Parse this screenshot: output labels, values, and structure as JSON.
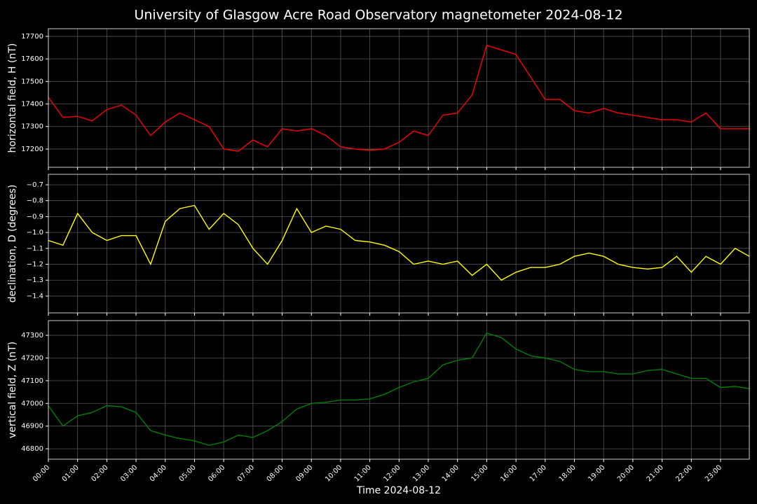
{
  "title": "University of Glasgow Acre Road Observatory magnetometer 2024-08-12",
  "chart_data": [
    {
      "type": "line",
      "y_label": "horizontal field, H (nT)",
      "color": "#ff0000",
      "grid": true,
      "x": [
        "00:00",
        "00:30",
        "01:00",
        "01:30",
        "02:00",
        "02:30",
        "03:00",
        "03:30",
        "04:00",
        "04:30",
        "05:00",
        "05:30",
        "06:00",
        "06:30",
        "07:00",
        "07:30",
        "08:00",
        "08:30",
        "09:00",
        "09:30",
        "10:00",
        "10:30",
        "11:00",
        "11:30",
        "12:00",
        "12:30",
        "13:00",
        "13:30",
        "14:00",
        "14:30",
        "15:00",
        "15:30",
        "16:00",
        "16:30",
        "17:00",
        "17:30",
        "18:00",
        "18:30",
        "19:00",
        "19:30",
        "20:00",
        "20:30",
        "21:00",
        "21:30",
        "22:00",
        "22:30",
        "23:00",
        "23:30",
        "23:59"
      ],
      "values": [
        17430,
        17340,
        17345,
        17325,
        17375,
        17395,
        17350,
        17260,
        17320,
        17360,
        17330,
        17300,
        17200,
        17190,
        17240,
        17210,
        17290,
        17280,
        17290,
        17260,
        17210,
        17200,
        17195,
        17200,
        17230,
        17280,
        17260,
        17350,
        17360,
        17440,
        17660,
        17640,
        17620,
        17520,
        17420,
        17420,
        17370,
        17360,
        17380,
        17360,
        17350,
        17340,
        17330,
        17330,
        17320,
        17360,
        17290,
        17290,
        17290
      ],
      "xlim": [
        "00:00",
        "23:59"
      ],
      "xticks": [
        "00:00",
        "01:00",
        "02:00",
        "03:00",
        "04:00",
        "05:00",
        "06:00",
        "07:00",
        "08:00",
        "09:00",
        "10:00",
        "11:00",
        "12:00",
        "13:00",
        "14:00",
        "15:00",
        "16:00",
        "17:00",
        "18:00",
        "19:00",
        "20:00",
        "21:00",
        "22:00",
        "23:00"
      ],
      "ylim": [
        17119,
        17734
      ],
      "yticks": [
        17200,
        17300,
        17400,
        17500,
        17600,
        17700
      ]
    },
    {
      "type": "line",
      "y_label": "declination, D (degrees)",
      "color": "#ffff00",
      "grid": true,
      "x": [
        "00:00",
        "00:30",
        "01:00",
        "01:30",
        "02:00",
        "02:30",
        "03:00",
        "03:30",
        "04:00",
        "04:30",
        "05:00",
        "05:30",
        "06:00",
        "06:30",
        "07:00",
        "07:30",
        "08:00",
        "08:30",
        "09:00",
        "09:30",
        "10:00",
        "10:30",
        "11:00",
        "11:30",
        "12:00",
        "12:30",
        "13:00",
        "13:30",
        "14:00",
        "14:30",
        "15:00",
        "15:30",
        "16:00",
        "16:30",
        "17:00",
        "17:30",
        "18:00",
        "18:30",
        "19:00",
        "19:30",
        "20:00",
        "20:30",
        "21:00",
        "21:30",
        "22:00",
        "22:30",
        "23:00",
        "23:30",
        "23:59"
      ],
      "values": [
        -1.05,
        -1.08,
        -0.88,
        -1.0,
        -1.05,
        -1.02,
        -1.02,
        -1.2,
        -0.93,
        -0.85,
        -0.83,
        -0.98,
        -0.88,
        -0.95,
        -1.1,
        -1.2,
        -1.05,
        -0.85,
        -1.0,
        -0.96,
        -0.98,
        -1.05,
        -1.06,
        -1.08,
        -1.12,
        -1.2,
        -1.18,
        -1.2,
        -1.18,
        -1.27,
        -1.2,
        -1.3,
        -1.25,
        -1.22,
        -1.22,
        -1.2,
        -1.15,
        -1.13,
        -1.15,
        -1.2,
        -1.22,
        -1.23,
        -1.22,
        -1.15,
        -1.25,
        -1.15,
        -1.2,
        -1.1,
        -1.15
      ],
      "xlim": [
        "00:00",
        "23:59"
      ],
      "xticks": [
        "00:00",
        "01:00",
        "02:00",
        "03:00",
        "04:00",
        "05:00",
        "06:00",
        "07:00",
        "08:00",
        "09:00",
        "10:00",
        "11:00",
        "12:00",
        "13:00",
        "14:00",
        "15:00",
        "16:00",
        "17:00",
        "18:00",
        "19:00",
        "20:00",
        "21:00",
        "22:00",
        "23:00"
      ],
      "ylim": [
        -1.506,
        -0.634
      ],
      "yticks": [
        {
          "value": -1.4,
          "label": "−1.4"
        },
        {
          "value": -1.3,
          "label": "−1.3"
        },
        {
          "value": -1.2,
          "label": "−1.2"
        },
        {
          "value": -1.1,
          "label": "−1.1"
        },
        {
          "value": -1.0,
          "label": "−1.0"
        },
        {
          "value": -0.9,
          "label": "−0.9"
        },
        {
          "value": -0.8,
          "label": "−0.8"
        },
        {
          "value": -0.7,
          "label": "−0.7"
        }
      ]
    },
    {
      "type": "line",
      "y_label": "vertical field, Z (nT)",
      "x_label": "Time 2024-08-12",
      "color": "#008000",
      "grid": true,
      "x": [
        "00:00",
        "00:30",
        "01:00",
        "01:30",
        "02:00",
        "02:30",
        "03:00",
        "03:30",
        "04:00",
        "04:30",
        "05:00",
        "05:30",
        "06:00",
        "06:30",
        "07:00",
        "07:30",
        "08:00",
        "08:30",
        "09:00",
        "09:30",
        "10:00",
        "10:30",
        "11:00",
        "11:30",
        "12:00",
        "12:30",
        "13:00",
        "13:30",
        "14:00",
        "14:30",
        "15:00",
        "15:30",
        "16:00",
        "16:30",
        "17:00",
        "17:30",
        "18:00",
        "18:30",
        "19:00",
        "19:30",
        "20:00",
        "20:30",
        "21:00",
        "21:30",
        "22:00",
        "22:30",
        "23:00",
        "23:30",
        "23:59"
      ],
      "values": [
        46990,
        46900,
        46945,
        46960,
        46990,
        46985,
        46960,
        46880,
        46860,
        46845,
        46835,
        46815,
        46830,
        46860,
        46850,
        46880,
        46920,
        46975,
        47000,
        47005,
        47015,
        47015,
        47020,
        47040,
        47070,
        47095,
        47110,
        47170,
        47190,
        47200,
        47310,
        47290,
        47240,
        47210,
        47200,
        47185,
        47150,
        47140,
        47140,
        47130,
        47130,
        47145,
        47150,
        47130,
        47110,
        47110,
        47070,
        47075,
        47065
      ],
      "xlim": [
        "00:00",
        "23:59"
      ],
      "xticks": [
        "00:00",
        "01:00",
        "02:00",
        "03:00",
        "04:00",
        "05:00",
        "06:00",
        "07:00",
        "08:00",
        "09:00",
        "10:00",
        "11:00",
        "12:00",
        "13:00",
        "14:00",
        "15:00",
        "16:00",
        "17:00",
        "18:00",
        "19:00",
        "20:00",
        "21:00",
        "22:00",
        "23:00"
      ],
      "show_xtick_labels": true,
      "ylim": [
        46754,
        47365
      ],
      "yticks": [
        46800,
        46900,
        47000,
        47100,
        47200,
        47300
      ]
    }
  ]
}
